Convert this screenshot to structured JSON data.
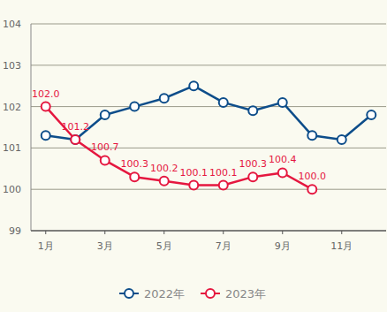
{
  "chart_data": {
    "type": "line",
    "categories": [
      "1月",
      null,
      "3月",
      null,
      "5月",
      null,
      "7月",
      null,
      "9月",
      null,
      "11月",
      null
    ],
    "series": [
      {
        "name": "2022年",
        "color": "#0d4d8a",
        "marker": "circle",
        "values": [
          101.3,
          101.2,
          101.8,
          102.0,
          102.2,
          102.5,
          102.1,
          101.9,
          102.1,
          101.3,
          101.2,
          101.8
        ]
      },
      {
        "name": "2023年",
        "color": "#e5173f",
        "marker": "circle",
        "data_labels": true,
        "values": [
          102.0,
          101.2,
          100.7,
          100.3,
          100.2,
          100.1,
          100.1,
          100.3,
          100.4,
          100.0,
          null,
          null
        ],
        "value_labels": [
          "102.0",
          "101.2",
          "100.7",
          "100.3",
          "100.2",
          "100.1",
          "100.1",
          "100.3",
          "100.4",
          "100.0",
          null,
          null
        ]
      }
    ],
    "ylim": [
      99,
      104
    ],
    "yticks": [
      99,
      100,
      101,
      102,
      103,
      104
    ],
    "grid": true,
    "legend": "bottom"
  }
}
